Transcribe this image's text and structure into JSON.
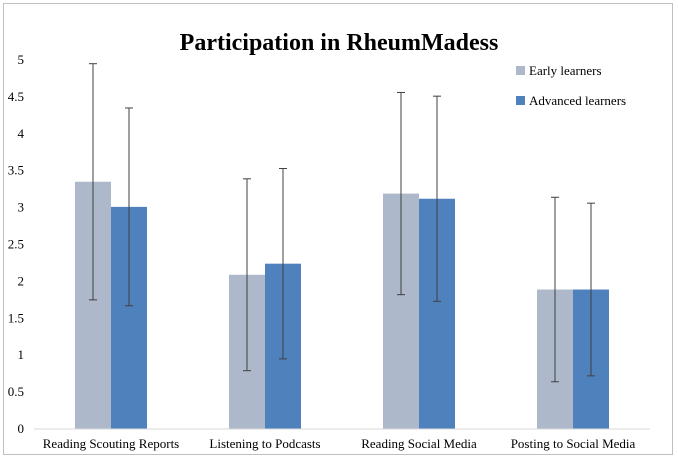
{
  "chart_data": {
    "type": "bar",
    "title": "Participation in RheumMadess",
    "xlabel": "",
    "ylabel": "",
    "categories": [
      "Reading Scouting Reports",
      "Listening to Podcasts",
      "Reading Social Media",
      "Posting to Social Media"
    ],
    "ylim": [
      0,
      5
    ],
    "yticks": [
      "0",
      "0.5",
      "1",
      "1.5",
      "2",
      "2.5",
      "3",
      "3.5",
      "4",
      "4.5",
      "5"
    ],
    "series": [
      {
        "name": "Early learners",
        "color": "#adb9ca",
        "values": [
          3.35,
          2.09,
          3.19,
          1.89
        ],
        "error": [
          1.6,
          1.3,
          1.37,
          1.25
        ]
      },
      {
        "name": "Advanced learners",
        "color": "#4f81bd",
        "values": [
          3.01,
          2.24,
          3.12,
          1.89
        ],
        "error": [
          1.34,
          1.29,
          1.39,
          1.17
        ]
      }
    ],
    "legend_position": "top-right",
    "grid": false
  }
}
